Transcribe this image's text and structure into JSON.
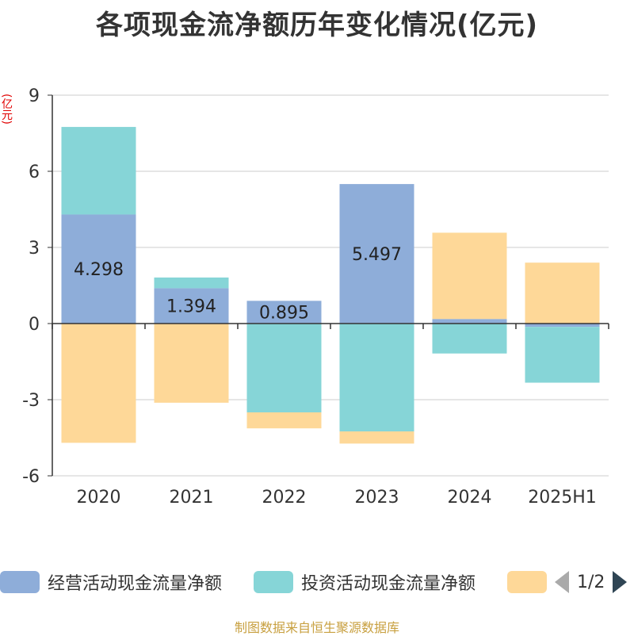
{
  "title": "各项现金流净额历年变化情况(亿元)",
  "unit_label": "(亿元)",
  "source": "制图数据来自恒生聚源数据库",
  "legend_page": "1/2",
  "chart_data": {
    "type": "bar",
    "stacked": true,
    "categories": [
      "2020",
      "2021",
      "2022",
      "2023",
      "2024",
      "2025H1"
    ],
    "ylim": [
      -6,
      9
    ],
    "yticks": [
      "9",
      "6",
      "3",
      "0",
      "-3",
      "-6"
    ],
    "ytick_values": [
      9,
      6,
      3,
      0,
      -3,
      -6
    ],
    "grid": true,
    "legend_position": "bottom",
    "series": [
      {
        "name": "经营活动现金流量净额",
        "color": "#8eadd9",
        "values": [
          4.298,
          1.394,
          0.895,
          5.497,
          0.18,
          -0.13
        ],
        "labels": [
          "4.298",
          "1.394",
          "0.895",
          "5.497",
          "",
          ""
        ]
      },
      {
        "name": "投资活动现金流量净额",
        "color": "#86d5d7",
        "values": [
          3.45,
          0.42,
          -3.5,
          -4.25,
          -1.18,
          -2.2
        ]
      },
      {
        "name": "",
        "color": "#fed898",
        "values": [
          -4.7,
          -3.12,
          -0.63,
          -0.48,
          3.4,
          2.4
        ]
      }
    ]
  }
}
